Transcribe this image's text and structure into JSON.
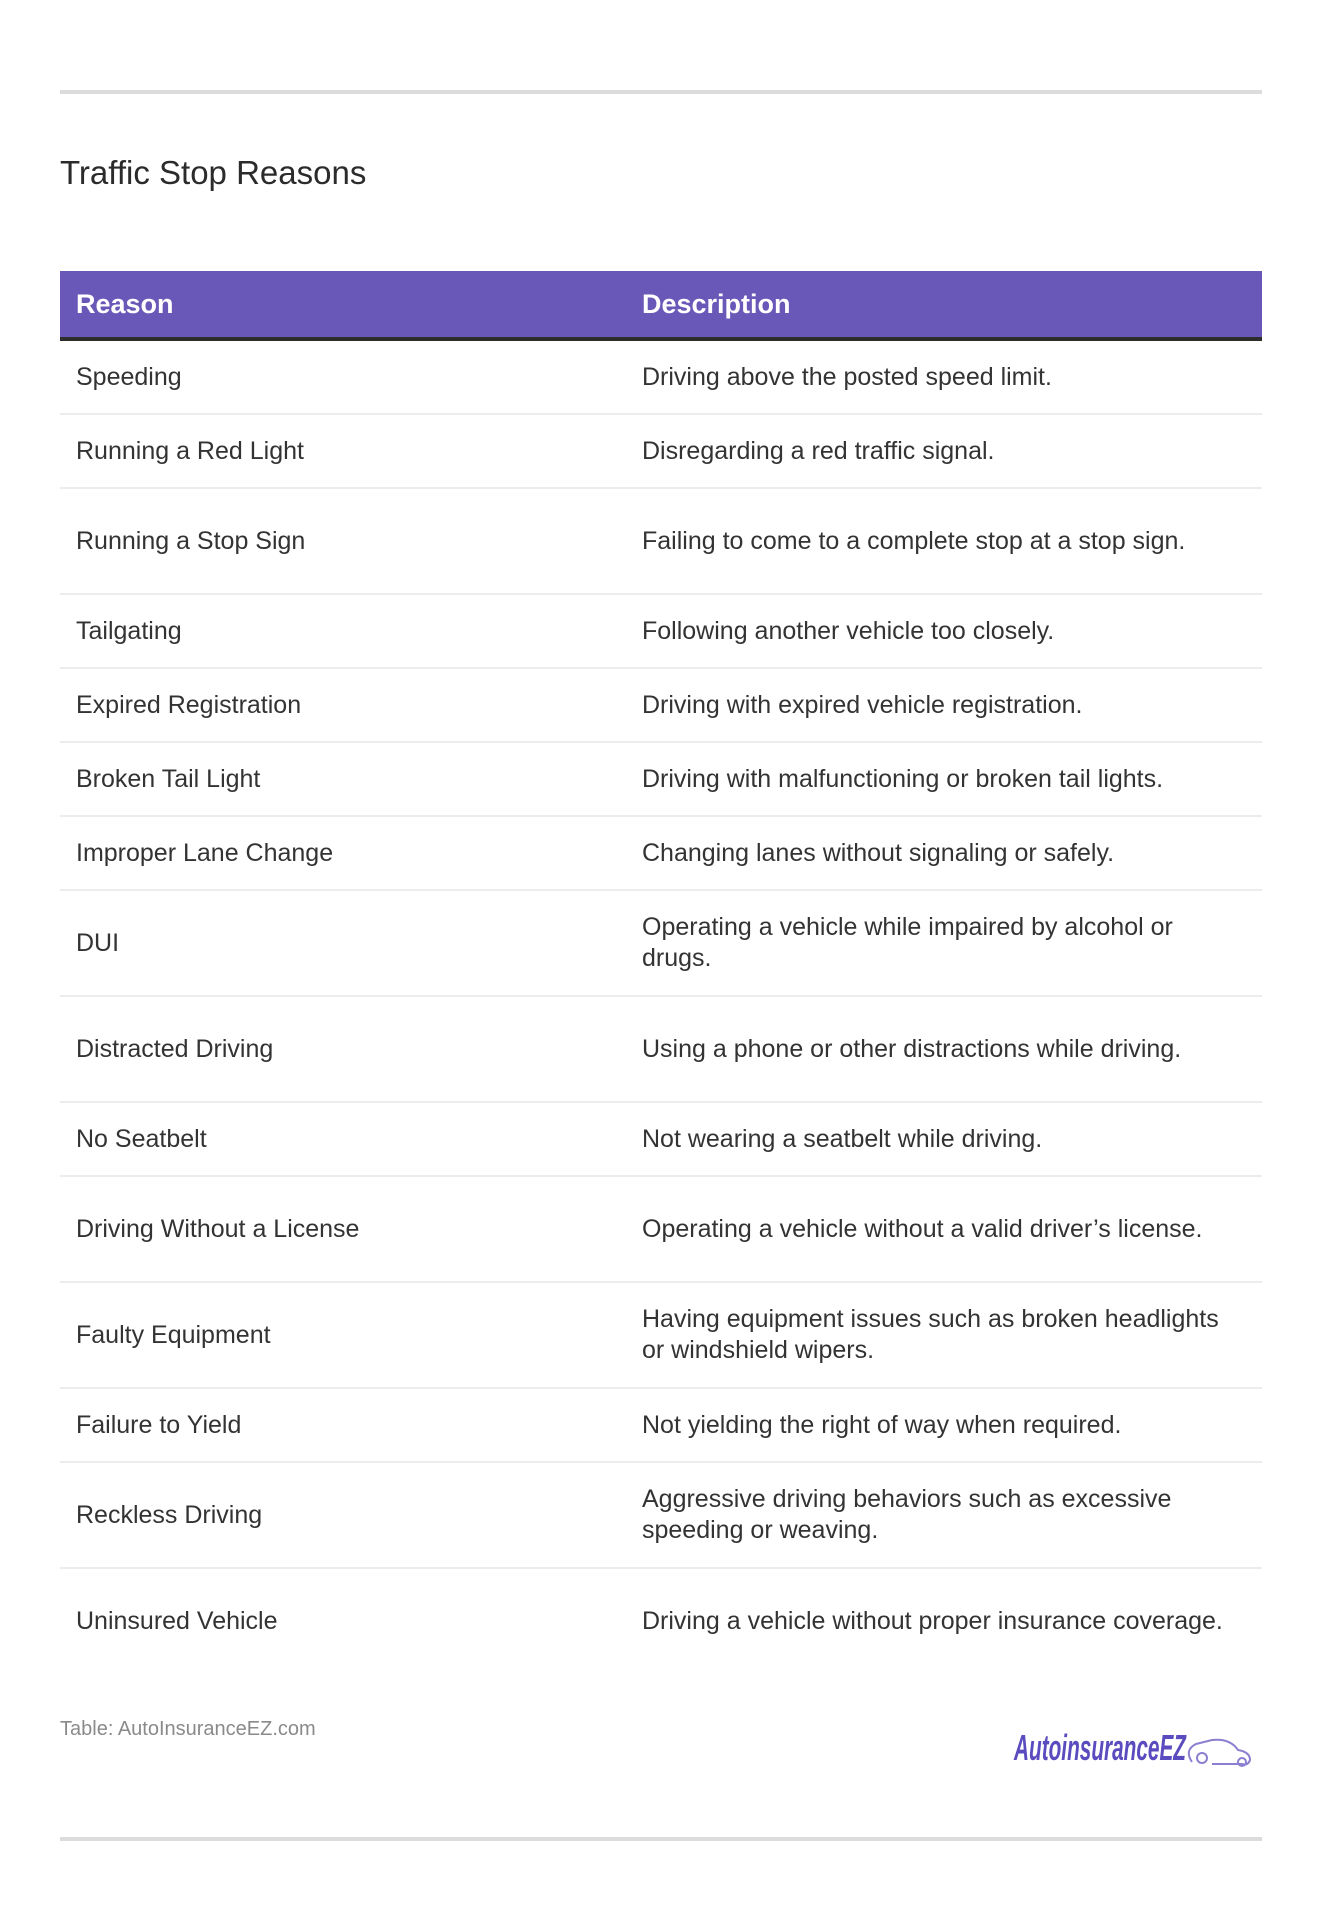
{
  "title": "Traffic Stop Reasons",
  "table": {
    "headers": [
      "Reason",
      "Description"
    ],
    "rows": [
      [
        "Speeding",
        "Driving above the posted speed limit."
      ],
      [
        "Running a Red Light",
        "Disregarding a red traffic signal."
      ],
      [
        "Running a Stop Sign",
        "Failing to come to a complete stop at a stop sign."
      ],
      [
        "Tailgating",
        "Following another vehicle too closely."
      ],
      [
        "Expired Registration",
        "Driving with expired vehicle registration."
      ],
      [
        "Broken Tail Light",
        "Driving with malfunctioning or broken tail lights."
      ],
      [
        "Improper Lane Change",
        "Changing lanes without signaling or safely."
      ],
      [
        "DUI",
        "Operating a vehicle while impaired by alcohol or drugs."
      ],
      [
        "Distracted Driving",
        "Using a phone or other distractions while driving."
      ],
      [
        "No Seatbelt",
        "Not wearing a seatbelt while driving."
      ],
      [
        "Driving Without a License",
        "Operating a vehicle without a valid driver’s license."
      ],
      [
        "Faulty Equipment",
        "Having equipment issues such as broken headlights or windshield wipers."
      ],
      [
        "Failure to Yield",
        "Not yielding the right of way when required."
      ],
      [
        "Reckless Driving",
        "Aggressive driving behaviors such as excessive speeding or weaving."
      ],
      [
        "Uninsured Vehicle",
        "Driving a vehicle without proper insurance coverage."
      ]
    ],
    "two_line_rows": [
      2,
      7,
      8,
      10,
      11,
      13,
      14
    ]
  },
  "footer": {
    "source": "Table: AutoInsuranceEZ.com",
    "logo_text": "AutoinsuranceEZ"
  },
  "colors": {
    "header_bg": "#6a58b9",
    "logo": "#5a4bbf"
  }
}
